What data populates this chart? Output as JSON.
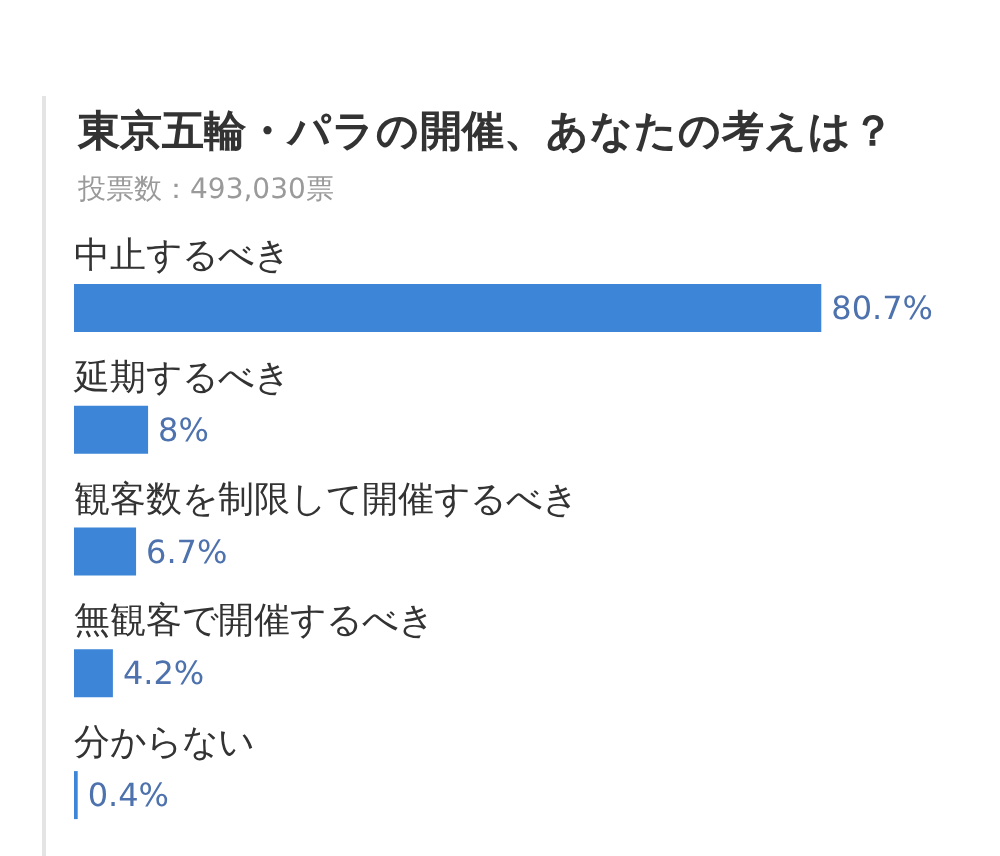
{
  "chart_data": {
    "type": "bar",
    "orientation": "horizontal",
    "title": "東京五輪・パラの開催、あなたの考えは？",
    "subtitle": "投票数：493,030票",
    "categories": [
      "中止するべき",
      "延期するべき",
      "観客数を制限して開催するべき",
      "無観客で開催するべき",
      "分からない"
    ],
    "values": [
      80.7,
      8,
      6.7,
      4.2,
      0.4
    ],
    "value_labels": [
      "80.7%",
      "8%",
      "6.7%",
      "4.2%",
      "0.4%"
    ],
    "color": "#3d85d6",
    "tick_labels": "y"
  }
}
